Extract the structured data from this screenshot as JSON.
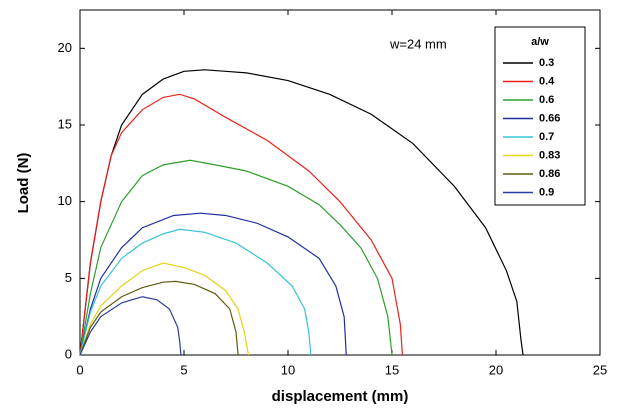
{
  "chart_data": {
    "type": "line",
    "x_label": "displacement (mm)",
    "y_label": "Load (N)",
    "annotation": "w=24 mm",
    "legend_title": "a/w",
    "legend_position": "upper right",
    "xlim": [
      0,
      25
    ],
    "ylim": [
      0,
      22.5
    ],
    "xticks": [
      0,
      5,
      10,
      15,
      20,
      25
    ],
    "yticks": [
      0,
      5,
      10,
      15,
      20
    ],
    "series": [
      {
        "name": "0.3",
        "color": "#000000",
        "x": [
          0,
          0.5,
          1,
          1.5,
          2,
          3,
          4,
          5,
          6,
          7,
          8,
          10,
          12,
          14,
          16,
          18,
          19.5,
          20.5,
          21,
          21.2,
          21.3
        ],
        "values": [
          0,
          6,
          10,
          13,
          15,
          17,
          18,
          18.5,
          18.6,
          18.5,
          18.4,
          17.9,
          17,
          15.7,
          13.8,
          11,
          8.3,
          5.5,
          3.5,
          1,
          0
        ]
      },
      {
        "name": "0.4",
        "color": "#e8211a",
        "x": [
          0,
          0.5,
          1,
          1.5,
          2,
          3,
          4,
          4.8,
          5.5,
          7,
          9,
          11,
          12.5,
          14,
          15,
          15.4,
          15.5
        ],
        "values": [
          0,
          6,
          10,
          13,
          14.5,
          16,
          16.8,
          17,
          16.7,
          15.5,
          14,
          12,
          10,
          7.5,
          5,
          2,
          0
        ]
      },
      {
        "name": "0.6",
        "color": "#2ca02c",
        "x": [
          0,
          0.5,
          1,
          2,
          3,
          4,
          5.3,
          6.5,
          8,
          10,
          11.5,
          12.5,
          13.5,
          14.3,
          14.8,
          15
        ],
        "values": [
          0,
          4,
          7,
          10,
          11.7,
          12.4,
          12.7,
          12.4,
          12,
          11,
          9.8,
          8.5,
          7,
          5,
          2.5,
          0
        ]
      },
      {
        "name": "0.66",
        "color": "#1f2f9c",
        "x": [
          0,
          0.5,
          1,
          2,
          3,
          4.5,
          5.8,
          7,
          8.5,
          10,
          11.5,
          12.3,
          12.7,
          12.8
        ],
        "values": [
          0,
          3,
          5,
          7,
          8.3,
          9.1,
          9.25,
          9.1,
          8.6,
          7.7,
          6.3,
          4.5,
          2.5,
          0
        ]
      },
      {
        "name": "0.7",
        "color": "#37c3d6",
        "x": [
          0,
          0.5,
          1,
          2,
          3,
          4,
          4.8,
          6,
          7.5,
          9,
          10.2,
          10.8,
          11,
          11.1
        ],
        "values": [
          0,
          2.8,
          4.5,
          6.3,
          7.3,
          7.9,
          8.2,
          8,
          7.3,
          6,
          4.5,
          3,
          1.5,
          0
        ]
      },
      {
        "name": "0.83",
        "color": "#e6d21a",
        "x": [
          0,
          0.5,
          1,
          2,
          3,
          4,
          5,
          6,
          7,
          7.6,
          7.9,
          8.1
        ],
        "values": [
          0,
          2,
          3.2,
          4.5,
          5.5,
          6,
          5.7,
          5.2,
          4.2,
          3,
          1.5,
          0
        ]
      },
      {
        "name": "0.86",
        "color": "#5e5a12",
        "x": [
          0,
          0.5,
          1,
          2,
          3,
          4,
          4.6,
          5.5,
          6.5,
          7.2,
          7.5,
          7.6
        ],
        "values": [
          0,
          1.8,
          2.8,
          3.8,
          4.4,
          4.75,
          4.8,
          4.6,
          4,
          3,
          1.5,
          0
        ]
      },
      {
        "name": "0.9",
        "color": "#2a3c9a",
        "x": [
          0,
          0.5,
          1,
          2,
          3,
          3.7,
          4.3,
          4.7,
          4.8,
          4.85
        ],
        "values": [
          0,
          1.5,
          2.5,
          3.4,
          3.8,
          3.6,
          3,
          1.8,
          0.8,
          0
        ]
      }
    ]
  }
}
